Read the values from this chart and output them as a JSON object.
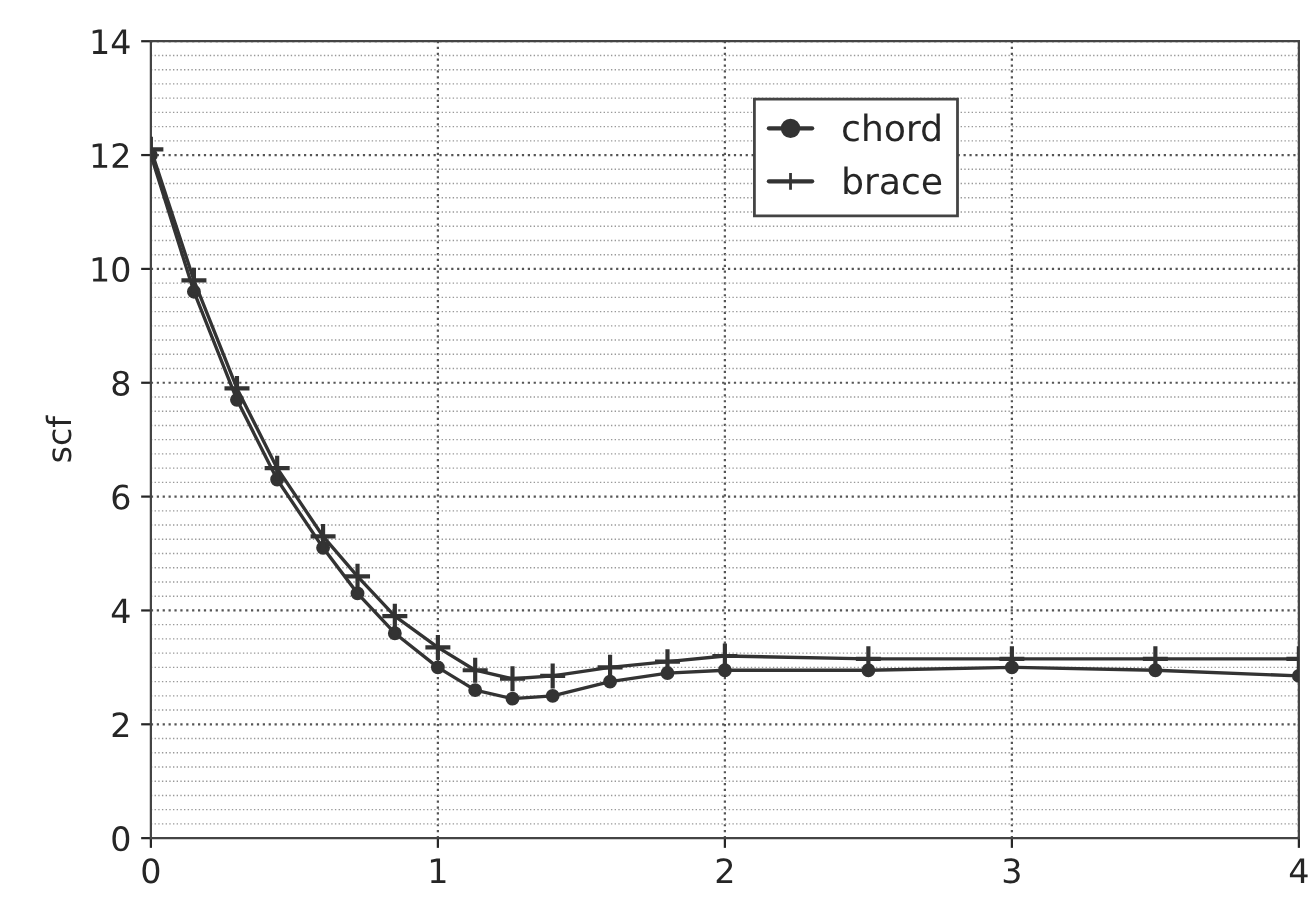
{
  "chart_data": {
    "type": "line",
    "ylabel": "scf",
    "x": [
      0,
      0.15,
      0.3,
      0.44,
      0.6,
      0.72,
      0.85,
      1,
      1.13,
      1.26,
      1.4,
      1.6,
      1.8,
      2,
      2.5,
      3,
      3.5,
      4
    ],
    "series": [
      {
        "name": "chord",
        "color": "#333333",
        "marker": "circle",
        "values": [
          12.0,
          9.6,
          7.7,
          6.3,
          5.1,
          4.3,
          3.6,
          3.0,
          2.6,
          2.45,
          2.5,
          2.75,
          2.9,
          2.95,
          2.95,
          3.0,
          2.95,
          2.85
        ]
      },
      {
        "name": "brace",
        "color": "#333333",
        "marker": "cross",
        "values": [
          12.1,
          9.8,
          7.9,
          6.5,
          5.3,
          4.6,
          3.9,
          3.35,
          2.95,
          2.8,
          2.85,
          3.0,
          3.1,
          3.2,
          3.15,
          3.15,
          3.15,
          3.15
        ]
      }
    ],
    "xlim": [
      0,
      4
    ],
    "xticks": [
      0,
      1,
      2,
      3,
      4
    ],
    "ylim": [
      0,
      14
    ],
    "yticks": [
      0,
      2,
      4,
      6,
      8,
      10,
      12,
      14
    ],
    "grid": true,
    "legend": "top",
    "line_style": "solid"
  }
}
